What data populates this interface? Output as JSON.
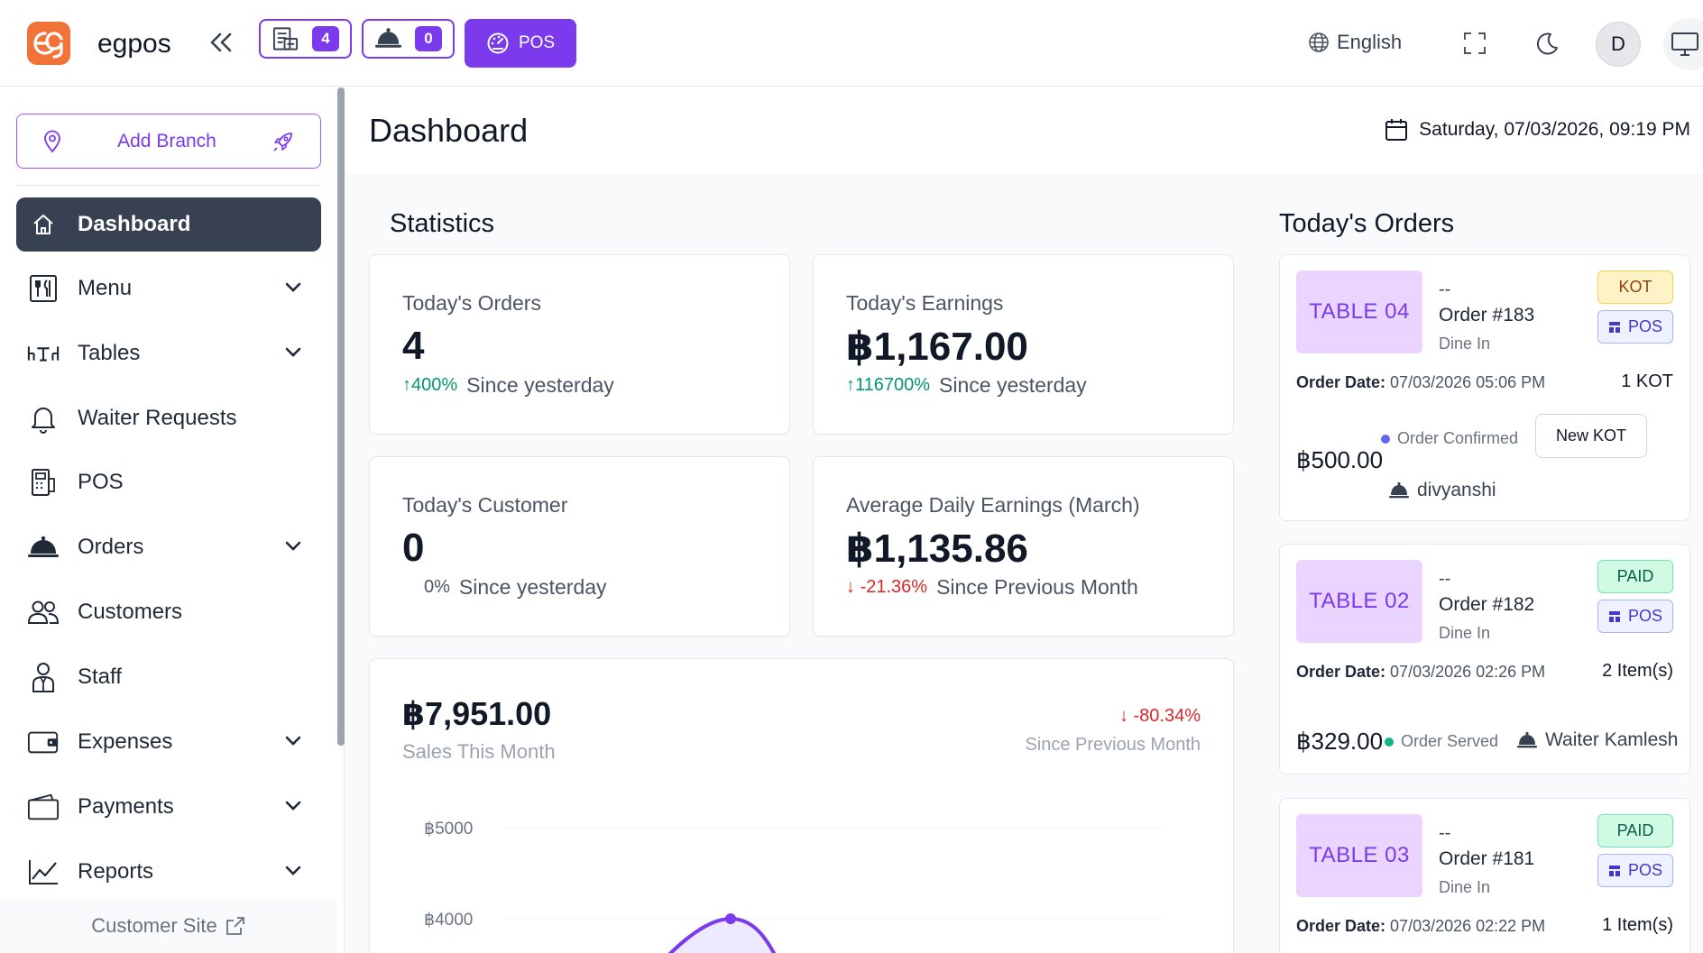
{
  "app": {
    "brand": "egpos",
    "kot_count": "4",
    "orders_count": "0",
    "pos_label": "POS",
    "language": "English",
    "avatar_initial": "D"
  },
  "sidebar": {
    "add_branch_label": "Add Branch",
    "items": [
      {
        "label": "Dashboard",
        "icon": "home-icon",
        "active": true,
        "has_submenu": false
      },
      {
        "label": "Menu",
        "icon": "menu-book-icon",
        "has_submenu": true
      },
      {
        "label": "Tables",
        "icon": "table-icon",
        "has_submenu": true
      },
      {
        "label": "Waiter Requests",
        "icon": "bell-icon",
        "has_submenu": false
      },
      {
        "label": "POS",
        "icon": "pos-icon",
        "has_submenu": false
      },
      {
        "label": "Orders",
        "icon": "cloche-icon",
        "has_submenu": true
      },
      {
        "label": "Customers",
        "icon": "users-icon",
        "has_submenu": false
      },
      {
        "label": "Staff",
        "icon": "staff-icon",
        "has_submenu": false
      },
      {
        "label": "Expenses",
        "icon": "wallet-icon",
        "has_submenu": true
      },
      {
        "label": "Payments",
        "icon": "wallet-open-icon",
        "has_submenu": true
      },
      {
        "label": "Reports",
        "icon": "chart-line-icon",
        "has_submenu": true
      }
    ],
    "footer_label": "Customer Site"
  },
  "page": {
    "title": "Dashboard",
    "date": "Saturday, 07/03/2026, 09:19 PM"
  },
  "statistics": {
    "title": "Statistics",
    "cards": [
      {
        "label": "Today's Orders",
        "value": "4",
        "change": "400%",
        "direction": "up",
        "since": "Since yesterday"
      },
      {
        "label": "Today's Earnings",
        "value": "฿1,167.00",
        "change": "116700%",
        "direction": "up",
        "since": "Since yesterday"
      },
      {
        "label": "Today's Customer",
        "value": "0",
        "change": "0%",
        "direction": "none",
        "since": "Since yesterday"
      },
      {
        "label": "Average Daily Earnings (March)",
        "value": "฿1,135.86",
        "change": "-21.36%",
        "direction": "down",
        "since": "Since Previous Month"
      }
    ]
  },
  "sales": {
    "total": "฿7,951.00",
    "label": "Sales This Month",
    "change": "-80.34%",
    "since": "Since Previous Month"
  },
  "chart_data": {
    "type": "area",
    "title": "",
    "xlabel": "",
    "ylabel": "",
    "tick_labels_y": [
      "฿5000",
      "฿4000"
    ],
    "series": [
      {
        "values": [
          4000
        ]
      }
    ],
    "grid": true,
    "colors": {
      "line": "#7c3aed",
      "fill": "#ede9fe"
    }
  },
  "orders": {
    "title": "Today's Orders",
    "items": [
      {
        "table": "TABLE 04",
        "dash": "--",
        "order_no": "Order #183",
        "type": "Dine In",
        "status": "KOT",
        "status_kind": "kot",
        "channel": "POS",
        "date_label": "Order Date:",
        "date": "07/03/2026 05:06 PM",
        "items": "1 KOT",
        "amount": "฿500.00",
        "state": "Order Confirmed",
        "state_color": "#6366f1",
        "waiter": "divyanshi",
        "action": "New KOT"
      },
      {
        "table": "TABLE 02",
        "dash": "--",
        "order_no": "Order #182",
        "type": "Dine In",
        "status": "PAID",
        "status_kind": "paid",
        "channel": "POS",
        "date_label": "Order Date:",
        "date": "07/03/2026 02:26 PM",
        "items": "2 Item(s)",
        "amount": "฿329.00",
        "state": "Order Served",
        "state_color": "#10b981",
        "waiter": "Waiter Kamlesh"
      },
      {
        "table": "TABLE 03",
        "dash": "--",
        "order_no": "Order #181",
        "type": "Dine In",
        "status": "PAID",
        "status_kind": "paid",
        "channel": "POS",
        "date_label": "Order Date:",
        "date": "07/03/2026 02:22 PM",
        "items": "1 Item(s)"
      }
    ]
  }
}
